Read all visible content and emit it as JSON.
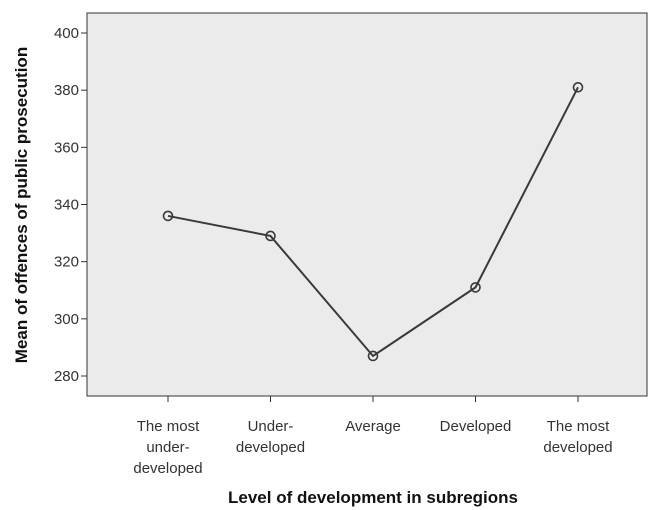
{
  "chart_data": {
    "type": "line",
    "title": "",
    "xlabel": "Level of development in subregions",
    "ylabel": "Mean of offences of public prosecution",
    "categories": [
      [
        "The most",
        "under-",
        "developed"
      ],
      [
        "Under-",
        "developed"
      ],
      [
        "Average"
      ],
      [
        "Developed"
      ],
      [
        "The most",
        "developed"
      ]
    ],
    "values": [
      336,
      329,
      287,
      311,
      381
    ],
    "ylim": [
      273,
      407
    ],
    "yticks": [
      280,
      300,
      320,
      340,
      360,
      380,
      400
    ],
    "grid": false,
    "legend": "none",
    "colors": {
      "plot_background": "#ebebeb",
      "line": "#3a3a3a",
      "axis": "#333333"
    }
  }
}
